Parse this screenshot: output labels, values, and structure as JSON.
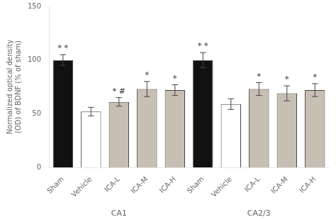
{
  "chart_data": {
    "type": "bar",
    "ylabel": "Normalized optical density\n(OD) of BDNF (% of sham)",
    "categories": [
      "Sham",
      "Vehicle",
      "ICA-L",
      "ICA-M",
      "ICA-H"
    ],
    "colors": [
      "#111111",
      "#ffffff",
      "#c8bfb4",
      "#c8bfb4",
      "#c8bfb4"
    ],
    "groups": [
      {
        "name": "CA1",
        "values": [
          100,
          52,
          61,
          73,
          72
        ],
        "errors": [
          5,
          4,
          4,
          7,
          5
        ],
        "annotations": [
          "* *",
          null,
          "* #",
          "*",
          "*"
        ]
      },
      {
        "name": "CA2/3",
        "values": [
          100,
          59,
          73,
          69,
          72
        ],
        "errors": [
          7,
          5,
          6,
          7,
          6
        ],
        "annotations": [
          "* *",
          null,
          "*",
          "*",
          "*"
        ]
      }
    ],
    "ylim": [
      0,
      150
    ],
    "yticks": [
      0,
      50,
      100,
      150
    ],
    "grid": false
  }
}
